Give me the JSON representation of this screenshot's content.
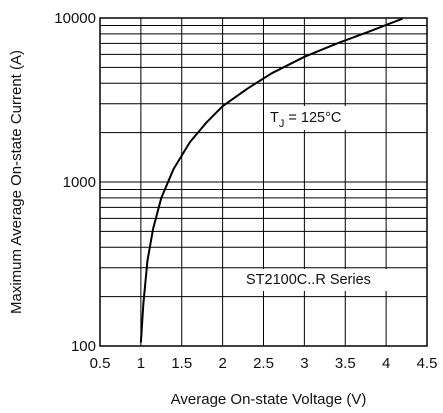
{
  "chart_data": {
    "type": "line",
    "title": "",
    "xlabel": "Average On-state Voltage (V)",
    "ylabel": "Maximum Average On-state Current (A)",
    "x_scale": "linear",
    "y_scale": "log",
    "xlim": [
      0.5,
      4.5
    ],
    "ylim": [
      100,
      10000
    ],
    "x_ticks": [
      "0.5",
      "1",
      "1.5",
      "2",
      "2.5",
      "3",
      "3.5",
      "4",
      "4.5"
    ],
    "y_ticks": [
      "100",
      "1000",
      "10000"
    ],
    "grid": true,
    "series": [
      {
        "x": [
          1.0,
          1.03,
          1.08,
          1.15,
          1.25,
          1.4,
          1.6,
          1.8,
          2.0,
          2.3,
          2.6,
          3.0,
          3.4,
          3.8,
          4.2
        ],
        "y": [
          105,
          180,
          330,
          520,
          800,
          1200,
          1750,
          2300,
          2900,
          3700,
          4600,
          5800,
          7000,
          8300,
          9900
        ]
      }
    ],
    "annotations": [
      {
        "main": "T",
        "sub": "J",
        "rest": " = 125°C"
      },
      {
        "text": "ST2100C..R Series"
      }
    ],
    "line_color": "#000000",
    "grid_color": "#000000"
  }
}
